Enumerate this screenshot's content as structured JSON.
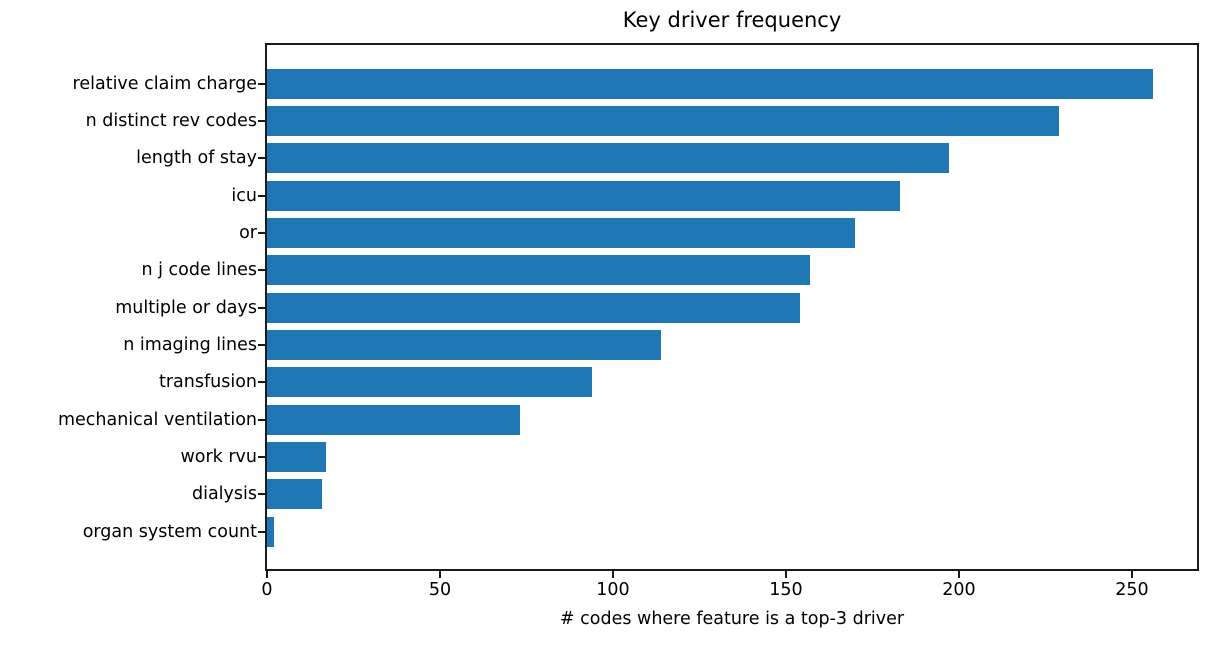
{
  "chart_data": {
    "type": "bar",
    "orientation": "horizontal",
    "title": "Key driver frequency",
    "xlabel": "# codes where feature is a top-3 driver",
    "ylabel": "",
    "categories": [
      "relative claim charge",
      "n distinct rev codes",
      "length of stay",
      "icu",
      "or",
      "n j code lines",
      "multiple or days",
      "n imaging lines",
      "transfusion",
      "mechanical ventilation",
      "work rvu",
      "dialysis",
      "organ system count"
    ],
    "values": [
      256,
      229,
      197,
      183,
      170,
      157,
      154,
      114,
      94,
      73,
      17,
      16,
      2
    ],
    "xticks": [
      0,
      50,
      100,
      150,
      200,
      250
    ],
    "xlim": [
      0,
      268.8
    ],
    "grid": false,
    "legend_position": "none",
    "bar_color": "#1f77b4",
    "axis_color": "#1a1a1a",
    "text_color": "#000000",
    "background_color": "#ffffff"
  }
}
